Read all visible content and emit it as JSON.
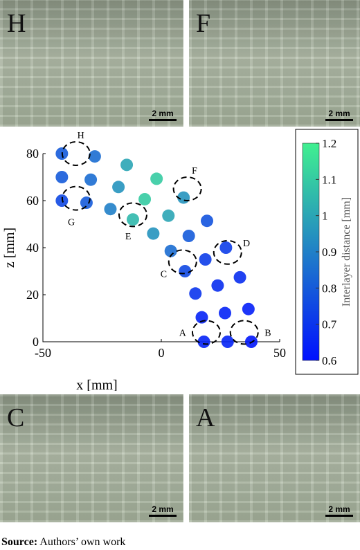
{
  "panels_top": [
    {
      "label": "H",
      "scale": "2 mm"
    },
    {
      "label": "F",
      "scale": "2 mm"
    }
  ],
  "panels_bottom": [
    {
      "label": "C",
      "scale": "2 mm"
    },
    {
      "label": "A",
      "scale": "2 mm"
    }
  ],
  "source": {
    "label": "Source:",
    "text": "Authors’ own work"
  },
  "chart_data": {
    "type": "scatter",
    "x_label": "x [mm]",
    "y_label": "z [mm]",
    "colorbar_label": "Interlayer distance [mm]",
    "xlim": [
      -50,
      50
    ],
    "xticks": [
      -50,
      0,
      50
    ],
    "ylim": [
      0,
      80
    ],
    "yticks": [
      0,
      20,
      40,
      60,
      80
    ],
    "clim": [
      0.6,
      1.2
    ],
    "cticks": [
      0.6,
      0.7,
      0.8,
      0.9,
      1,
      1.1,
      1.2
    ],
    "colormap": [
      "#0010ff",
      "#40f090"
    ],
    "grid": false,
    "x": [
      18,
      17.1,
      14.4,
      10,
      4,
      -3.4,
      -12,
      -21.5,
      -31.6,
      -42,
      28,
      26.9,
      23.8,
      18.6,
      11.6,
      3,
      -7,
      -18.1,
      -29.8,
      -42,
      38,
      36.8,
      33.2,
      27.3,
      19.3,
      9.4,
      -2,
      -14.6,
      -28.1,
      -42
    ],
    "y": [
      0,
      10.4,
      20.5,
      30,
      38.6,
      46,
      52,
      56.4,
      59.1,
      60,
      0,
      12.2,
      23.9,
      35,
      45,
      53.6,
      60.6,
      65.8,
      68.9,
      70,
      0,
      13.9,
      27.4,
      40,
      51.4,
      61.3,
      69.3,
      75.2,
      78.8,
      80
    ],
    "values": [
      0.65,
      0.65,
      0.7,
      0.75,
      0.85,
      0.95,
      1.05,
      0.9,
      0.8,
      0.75,
      0.65,
      0.65,
      0.68,
      0.72,
      0.8,
      1.0,
      1.1,
      0.95,
      0.85,
      0.8,
      0.62,
      0.64,
      0.68,
      0.72,
      0.78,
      0.95,
      1.1,
      1.0,
      0.85,
      0.8
    ],
    "annotations": [
      {
        "label": "H",
        "x": -36,
        "y": 80,
        "label_x": -34,
        "label_y": 88
      },
      {
        "label": "F",
        "x": 11,
        "y": 65,
        "label_x": 14,
        "label_y": 73
      },
      {
        "label": "G",
        "x": -36,
        "y": 61,
        "label_x": -38,
        "label_y": 51
      },
      {
        "label": "E",
        "x": -12,
        "y": 54,
        "label_x": -14,
        "label_y": 45
      },
      {
        "label": "D",
        "x": 28,
        "y": 38,
        "label_x": 36,
        "label_y": 42
      },
      {
        "label": "C",
        "x": 9,
        "y": 34,
        "label_x": 1,
        "label_y": 29
      },
      {
        "label": "A",
        "x": 19,
        "y": 4,
        "label_x": 9,
        "label_y": 4
      },
      {
        "label": "B",
        "x": 35,
        "y": 4,
        "label_x": 45,
        "label_y": 4
      }
    ]
  }
}
